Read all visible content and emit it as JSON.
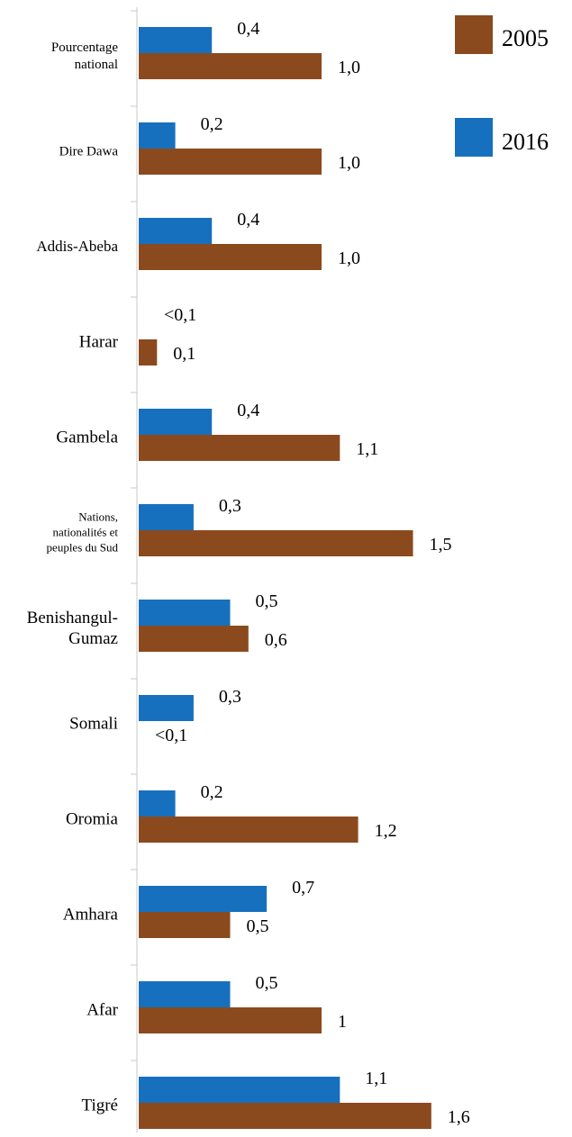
{
  "chart_data": {
    "type": "bar",
    "orientation": "horizontal",
    "categories": [
      "Pourcentage national",
      "Dire Dawa",
      "Addis-Abeba",
      "Harar",
      "Gambela",
      "Nations, nationalités et peuples du Sud",
      "Benishangul-Gumaz",
      "Somali",
      "Oromia",
      "Amhara",
      "Afar",
      "Tigré"
    ],
    "series": [
      {
        "name": "2016",
        "color": "#1670be",
        "values": [
          0.4,
          0.2,
          0.4,
          0.0,
          0.4,
          0.3,
          0.5,
          0.3,
          0.2,
          0.7,
          0.5,
          1.1
        ],
        "labels": [
          "0,4",
          "0,2",
          "0,4",
          "<0,1",
          "0,4",
          "0,3",
          "0,5",
          "0,3",
          "0,2",
          "0,7",
          "0,5",
          "1,1"
        ]
      },
      {
        "name": "2005",
        "color": "#8b4a1e",
        "values": [
          1.0,
          1.0,
          1.0,
          0.1,
          1.1,
          1.5,
          0.6,
          0.0,
          1.2,
          0.5,
          1.0,
          1.6
        ],
        "labels": [
          "1,0",
          "1,0",
          "1,0",
          "0,1",
          "1,1",
          "1,5",
          "0,6",
          "<0,1",
          "1,2",
          "0,5",
          "1",
          "1,6"
        ]
      }
    ],
    "legend": [
      "2005",
      "2016"
    ],
    "legend_position": "top-right",
    "xlim": [
      0,
      1.6
    ],
    "grid": false
  }
}
